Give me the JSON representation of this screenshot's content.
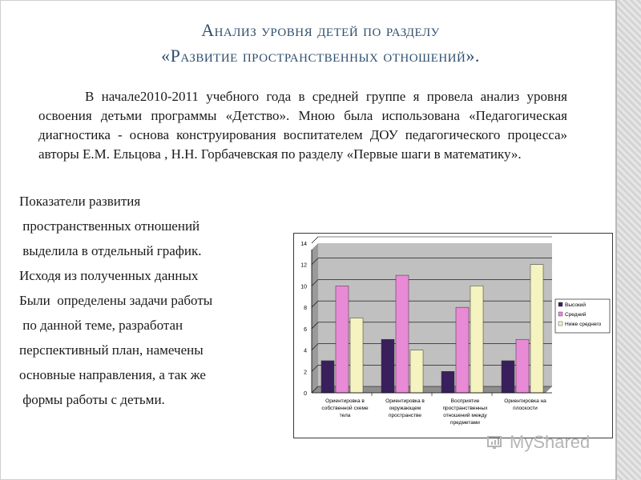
{
  "slide": {
    "title_line1": "Анализ уровня детей по разделу",
    "title_line2": "«Развитие пространственных отношений».",
    "intro": "В начале2010-2011 учебного года в средней группе я провела анализ уровня освоения детьми программы «Детство». Мною была использована «Педагогическая диагностика - основа конструирования воспитателем ДОУ педагогического процесса» авторы Е.М. Ельцова , Н.Н. Горбачевская по разделу «Первые шаги в математику».",
    "left_lines": [
      "Показатели развития",
      " пространственных отношений",
      " выделила в отдельный график.",
      "Исходя из полученных данных",
      "Были  определены задачи работы",
      " по данной теме, разработан",
      "перспективный план, намечены",
      "основные направления, а так же",
      " формы работы с детьми."
    ]
  },
  "watermark": {
    "text": "MyShared",
    "icon": "myshared-logo-icon"
  },
  "colors": {
    "title": "#2f4f6e",
    "series_high": "#3a1f5d",
    "series_mid": "#e98ad6",
    "series_low": "#f5f3bf",
    "plot_bg": "#c0c0c0"
  },
  "chart_data": {
    "type": "bar",
    "categories": [
      [
        "Ориентировка в",
        "собственной схеме",
        "тела"
      ],
      [
        "Ориентировка в",
        "окружающем",
        "пространстве"
      ],
      [
        "Восприятие",
        "пространственных",
        "отношений между",
        "предметами"
      ],
      [
        "Ориентировка на",
        "плоскости"
      ]
    ],
    "series": [
      {
        "name": "Высокий",
        "values": [
          3,
          5,
          2,
          3
        ]
      },
      {
        "name": "Средний",
        "values": [
          10,
          11,
          8,
          5
        ]
      },
      {
        "name": "Ниже среднего",
        "values": [
          7,
          4,
          10,
          12
        ]
      }
    ],
    "y_ticks": [
      "0",
      "2",
      "4",
      "6",
      "8",
      "10",
      "12",
      "14"
    ],
    "ylim": [
      0,
      14
    ],
    "grid": true,
    "legend_position": "right"
  }
}
